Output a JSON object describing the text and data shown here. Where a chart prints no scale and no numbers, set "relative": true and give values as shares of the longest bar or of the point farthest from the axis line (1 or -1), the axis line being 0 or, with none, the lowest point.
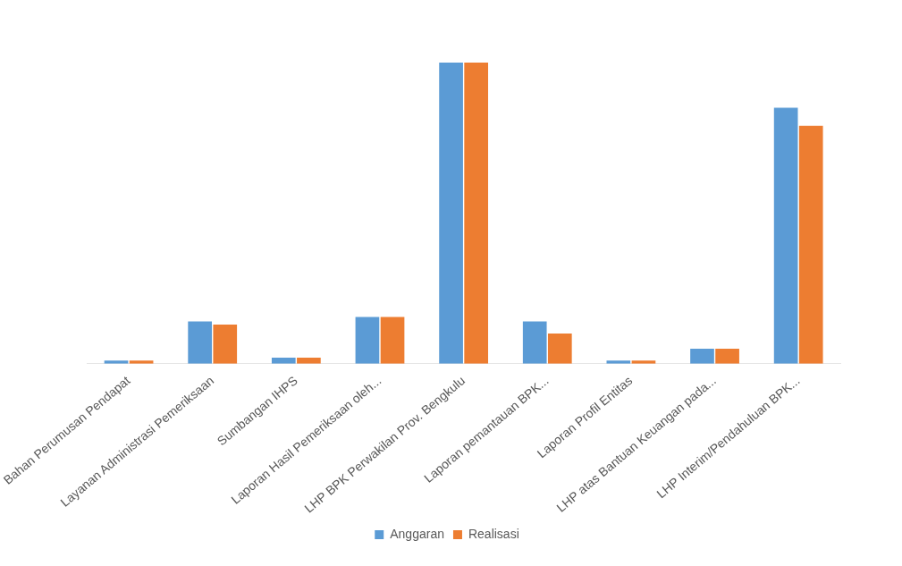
{
  "chart_data": {
    "type": "bar",
    "relative": true,
    "legend": "bottom",
    "categories": [
      "Bahan Perumusan Pendapat",
      "Layanan Administrasi Pemeriksaan",
      "Sumbangan IHPS",
      "Laporan Hasil Pemeriksaan oleh...",
      "LHP BPK Perwakilan Prov. Bengkulu",
      "Laporan pemantauan BPK...",
      "Laporan Profil Entitas",
      "LHP atas Bantuan Keuangan pada...",
      "LHP Interim/Pendahuluan BPK..."
    ],
    "series": [
      {
        "name": "Anggaran",
        "color": "#5b9bd5",
        "values": [
          0.01,
          0.14,
          0.02,
          0.155,
          1,
          0.14,
          0.01,
          0.05,
          0.85
        ]
      },
      {
        "name": "Realisasi",
        "color": "#ed7d31",
        "values": [
          0.01,
          0.13,
          0.02,
          0.155,
          1,
          0.1,
          0.01,
          0.05,
          0.79
        ]
      }
    ]
  }
}
